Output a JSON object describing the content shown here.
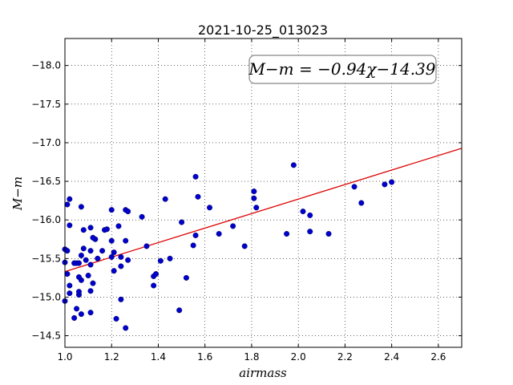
{
  "chart_data": {
    "type": "scatter",
    "title": "2021-10-25_013023",
    "xlabel": "airmass",
    "ylabel": "M−m",
    "xlim": [
      1.0,
      2.7
    ],
    "ylim": [
      -18.35,
      -14.35
    ],
    "y_inverted": true,
    "xticks": [
      "1.0",
      "1.2",
      "1.4",
      "1.6",
      "1.8",
      "2.0",
      "2.2",
      "2.4",
      "2.6"
    ],
    "yticks": [
      "−14.5",
      "−15.0",
      "−15.5",
      "−16.0",
      "−16.5",
      "−17.0",
      "−17.5",
      "−18.0"
    ],
    "grid": true,
    "annotation": "M−m = −0.94χ−14.39",
    "fit": {
      "slope": -0.94,
      "intercept": -14.39,
      "color": "#dd0000"
    },
    "point_color": "#0000cc",
    "points": [
      [
        1.0,
        -14.95
      ],
      [
        1.01,
        -15.3
      ],
      [
        1.0,
        -15.45
      ],
      [
        1.0,
        -15.62
      ],
      [
        1.01,
        -15.6
      ],
      [
        1.02,
        -15.05
      ],
      [
        1.02,
        -15.15
      ],
      [
        1.02,
        -15.93
      ],
      [
        1.01,
        -16.2
      ],
      [
        1.02,
        -16.27
      ],
      [
        1.04,
        -14.73
      ],
      [
        1.05,
        -14.85
      ],
      [
        1.06,
        -15.03
      ],
      [
        1.06,
        -15.07
      ],
      [
        1.07,
        -15.22
      ],
      [
        1.06,
        -15.26
      ],
      [
        1.04,
        -15.44
      ],
      [
        1.05,
        -15.44
      ],
      [
        1.06,
        -15.44
      ],
      [
        1.07,
        -15.54
      ],
      [
        1.08,
        -15.63
      ],
      [
        1.08,
        -15.87
      ],
      [
        1.07,
        -16.17
      ],
      [
        1.07,
        -14.78
      ],
      [
        1.09,
        -15.48
      ],
      [
        1.1,
        -15.28
      ],
      [
        1.11,
        -15.42
      ],
      [
        1.11,
        -15.6
      ],
      [
        1.11,
        -14.8
      ],
      [
        1.11,
        -15.08
      ],
      [
        1.12,
        -15.18
      ],
      [
        1.13,
        -15.75
      ],
      [
        1.12,
        -15.77
      ],
      [
        1.11,
        -15.9
      ],
      [
        1.14,
        -15.5
      ],
      [
        1.16,
        -15.6
      ],
      [
        1.17,
        -15.87
      ],
      [
        1.18,
        -15.88
      ],
      [
        1.2,
        -15.73
      ],
      [
        1.2,
        -15.52
      ],
      [
        1.21,
        -15.34
      ],
      [
        1.21,
        -15.58
      ],
      [
        1.22,
        -14.72
      ],
      [
        1.23,
        -15.92
      ],
      [
        1.2,
        -16.13
      ],
      [
        1.24,
        -15.4
      ],
      [
        1.24,
        -15.52
      ],
      [
        1.24,
        -14.97
      ],
      [
        1.26,
        -14.6
      ],
      [
        1.26,
        -15.73
      ],
      [
        1.27,
        -15.48
      ],
      [
        1.26,
        -16.13
      ],
      [
        1.27,
        -16.11
      ],
      [
        1.33,
        -16.04
      ],
      [
        1.35,
        -15.66
      ],
      [
        1.38,
        -15.15
      ],
      [
        1.38,
        -15.27
      ],
      [
        1.39,
        -15.3
      ],
      [
        1.41,
        -15.47
      ],
      [
        1.43,
        -16.27
      ],
      [
        1.45,
        -15.5
      ],
      [
        1.49,
        -14.83
      ],
      [
        1.5,
        -15.97
      ],
      [
        1.52,
        -15.25
      ],
      [
        1.55,
        -15.67
      ],
      [
        1.56,
        -15.8
      ],
      [
        1.57,
        -16.3
      ],
      [
        1.56,
        -16.56
      ],
      [
        1.62,
        -16.16
      ],
      [
        1.66,
        -15.82
      ],
      [
        1.72,
        -15.92
      ],
      [
        1.77,
        -15.66
      ],
      [
        1.81,
        -16.28
      ],
      [
        1.81,
        -16.37
      ],
      [
        1.82,
        -16.16
      ],
      [
        1.95,
        -15.82
      ],
      [
        1.98,
        -16.71
      ],
      [
        2.02,
        -16.11
      ],
      [
        2.05,
        -15.85
      ],
      [
        2.05,
        -16.06
      ],
      [
        2.13,
        -15.82
      ],
      [
        2.24,
        -16.43
      ],
      [
        2.27,
        -16.22
      ],
      [
        2.37,
        -16.46
      ],
      [
        2.4,
        -16.49
      ]
    ]
  }
}
